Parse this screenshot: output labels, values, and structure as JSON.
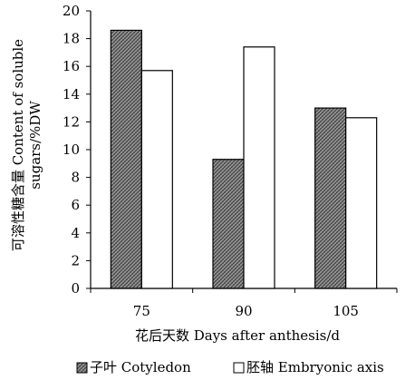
{
  "chart_data": {
    "type": "bar",
    "categories": [
      "75",
      "90",
      "105"
    ],
    "series": [
      {
        "name": "子叶 Cotyledon",
        "values": [
          18.6,
          9.3,
          13.0
        ],
        "pattern": "crosshatch-gray"
      },
      {
        "name": "胚轴 Embryonic axis",
        "values": [
          15.7,
          17.4,
          12.3
        ],
        "pattern": "white"
      }
    ],
    "xlabel": "花后天数 Days after anthesis/d",
    "ylabel_line1": "可溶性糖含量 Content of soluble",
    "ylabel_line2": "sugars/%DW",
    "ylim": [
      0,
      20
    ],
    "yticks": [
      0,
      2,
      4,
      6,
      8,
      10,
      12,
      14,
      16,
      18,
      20
    ],
    "grid": false,
    "legend_position": "bottom"
  }
}
